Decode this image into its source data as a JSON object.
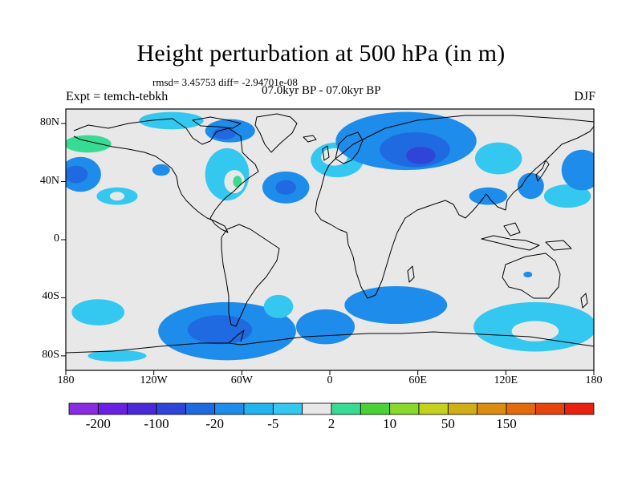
{
  "title": "Height perturbation at 500 hPa (in m)",
  "stats": "rmsd= 3.45753 diff= -2.94701e-08",
  "left_label": "Expt = temch-tebkh",
  "center_label": "07.0kyr BP - 07.0kyr BP",
  "right_label": "DJF",
  "map": {
    "projection": "cylindrical-equidistant",
    "lon_range": [
      -180,
      180
    ],
    "lat_range": [
      -90,
      90
    ],
    "lat_ticks": [
      {
        "value": 80,
        "label": "80N"
      },
      {
        "value": 40,
        "label": "40N"
      },
      {
        "value": 0,
        "label": "0"
      },
      {
        "value": -40,
        "label": "40S"
      },
      {
        "value": -80,
        "label": "80S"
      }
    ],
    "lon_ticks": [
      {
        "value": -180,
        "label": "180"
      },
      {
        "value": -120,
        "label": "120W"
      },
      {
        "value": -60,
        "label": "60W"
      },
      {
        "value": 0,
        "label": "0"
      },
      {
        "value": 60,
        "label": "60E"
      },
      {
        "value": 120,
        "label": "120E"
      },
      {
        "value": 180,
        "label": "180"
      }
    ],
    "background_color": "#e8e8e8",
    "anomalies": [
      {
        "lon": -165,
        "lat": 63,
        "rlon": 30,
        "rlat": 12,
        "level": 8
      },
      {
        "lon": -165,
        "lat": 66,
        "rlon": 16,
        "rlat": 6,
        "level": 9
      },
      {
        "lon": -170,
        "lat": 45,
        "rlon": 14,
        "rlat": 12,
        "level": 5
      },
      {
        "lon": -173,
        "lat": 45,
        "rlon": 8,
        "rlat": 6,
        "level": 4
      },
      {
        "lon": -145,
        "lat": 30,
        "rlon": 14,
        "rlat": 6,
        "level": 7
      },
      {
        "lon": -145,
        "lat": 30,
        "rlon": 5,
        "rlat": 3,
        "level": 8
      },
      {
        "lon": -115,
        "lat": 48,
        "rlon": 6,
        "rlat": 4,
        "level": 5
      },
      {
        "lon": -108,
        "lat": 82,
        "rlon": 22,
        "rlat": 6,
        "level": 7
      },
      {
        "lon": -68,
        "lat": 75,
        "rlon": 17,
        "rlat": 8,
        "level": 5
      },
      {
        "lon": -72,
        "lat": 73,
        "rlon": 8,
        "rlat": 4,
        "level": 4
      },
      {
        "lon": -70,
        "lat": 45,
        "rlon": 15,
        "rlat": 18,
        "level": 7
      },
      {
        "lon": -65,
        "lat": 40,
        "rlon": 7,
        "rlat": 8,
        "level": 8
      },
      {
        "lon": -63,
        "lat": 40,
        "rlon": 3,
        "rlat": 4,
        "level": 9
      },
      {
        "lon": -30,
        "lat": 36,
        "rlon": 16,
        "rlat": 11,
        "level": 5
      },
      {
        "lon": -30,
        "lat": 36,
        "rlon": 7,
        "rlat": 5,
        "level": 4
      },
      {
        "lon": 5,
        "lat": 55,
        "rlon": 18,
        "rlat": 12,
        "level": 7
      },
      {
        "lon": 3,
        "lat": 57,
        "rlon": 9,
        "rlat": 6,
        "level": 8
      },
      {
        "lon": 52,
        "lat": 68,
        "rlon": 48,
        "rlat": 20,
        "level": 5
      },
      {
        "lon": 58,
        "lat": 62,
        "rlon": 24,
        "rlat": 12,
        "level": 4
      },
      {
        "lon": 62,
        "lat": 58,
        "rlon": 10,
        "rlat": 6,
        "level": 3
      },
      {
        "lon": 115,
        "lat": 56,
        "rlon": 16,
        "rlat": 11,
        "level": 7
      },
      {
        "lon": 108,
        "lat": 30,
        "rlon": 13,
        "rlat": 6,
        "level": 5
      },
      {
        "lon": 137,
        "lat": 37,
        "rlon": 9,
        "rlat": 9,
        "level": 5
      },
      {
        "lon": 162,
        "lat": 30,
        "rlon": 16,
        "rlat": 8,
        "level": 7
      },
      {
        "lon": 172,
        "lat": 48,
        "rlon": 14,
        "rlat": 14,
        "level": 5
      },
      {
        "lon": -158,
        "lat": -50,
        "rlon": 18,
        "rlat": 9,
        "level": 7
      },
      {
        "lon": -145,
        "lat": -80,
        "rlon": 20,
        "rlat": 4,
        "level": 7
      },
      {
        "lon": -70,
        "lat": -63,
        "rlon": 47,
        "rlat": 20,
        "level": 5
      },
      {
        "lon": -75,
        "lat": -62,
        "rlon": 22,
        "rlat": 10,
        "level": 4
      },
      {
        "lon": -35,
        "lat": -46,
        "rlon": 10,
        "rlat": 8,
        "level": 7
      },
      {
        "lon": -3,
        "lat": -60,
        "rlon": 20,
        "rlat": 12,
        "level": 5
      },
      {
        "lon": 45,
        "lat": -45,
        "rlon": 35,
        "rlat": 13,
        "level": 5
      },
      {
        "lon": 140,
        "lat": -60,
        "rlon": 42,
        "rlat": 17,
        "level": 7
      },
      {
        "lon": 140,
        "lat": -63,
        "rlon": 16,
        "rlat": 7,
        "level": 8
      },
      {
        "lon": 135,
        "lat": -24,
        "rlon": 3,
        "rlat": 2,
        "level": 5
      }
    ]
  },
  "colorbar": {
    "colors": [
      "#8a2be2",
      "#6a20e0",
      "#4a2ad8",
      "#2f45d8",
      "#1f6ae0",
      "#1d8cea",
      "#21b4ee",
      "#34c8f0",
      "#e8e8e8",
      "#38db94",
      "#49d135",
      "#8ad82b",
      "#c4d21d",
      "#d0ae16",
      "#dc8c10",
      "#e46a0c",
      "#e6440e",
      "#e8220e"
    ],
    "labels": [
      {
        "boundary": 1,
        "text": "-200"
      },
      {
        "boundary": 3,
        "text": "-100"
      },
      {
        "boundary": 5,
        "text": "-20"
      },
      {
        "boundary": 7,
        "text": "-5"
      },
      {
        "boundary": 9,
        "text": "2"
      },
      {
        "boundary": 11,
        "text": "10"
      },
      {
        "boundary": 13,
        "text": "50"
      },
      {
        "boundary": 15,
        "text": "150"
      }
    ]
  }
}
